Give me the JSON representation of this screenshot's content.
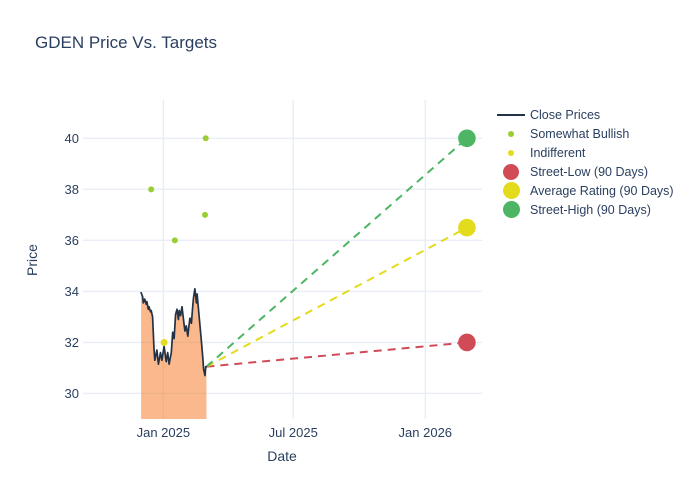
{
  "chart_data": {
    "type": "line",
    "title": "GDEN Price Vs. Targets",
    "xlabel": "Date",
    "ylabel": "Price",
    "grid": true,
    "legend_position": "right",
    "x_range": [
      "2024-09-11",
      "2026-03-21"
    ],
    "y_range": [
      29.0,
      41.5
    ],
    "x_ticks": [
      {
        "date": "2025-01-01",
        "label": "Jan 2025"
      },
      {
        "date": "2025-07-01",
        "label": "Jul 2025"
      },
      {
        "date": "2026-01-01",
        "label": "Jan 2026"
      }
    ],
    "y_ticks": [
      30,
      32,
      34,
      36,
      38,
      40
    ],
    "close_prices": {
      "name": "Close Prices",
      "line_color": "#223247",
      "fill_color": "rgba(246,126,46,0.55)",
      "dates": [
        "2024-12-01",
        "2024-12-03",
        "2024-12-04",
        "2024-12-06",
        "2024-12-08",
        "2024-12-09",
        "2024-12-11",
        "2024-12-12",
        "2024-12-14",
        "2024-12-15",
        "2024-12-17",
        "2024-12-19",
        "2024-12-20",
        "2024-12-23",
        "2024-12-25",
        "2024-12-28",
        "2024-12-30",
        "2025-01-02",
        "2025-01-05",
        "2025-01-07",
        "2025-01-09",
        "2025-01-12",
        "2025-01-14",
        "2025-01-16",
        "2025-01-18",
        "2025-01-20",
        "2025-01-22",
        "2025-01-23",
        "2025-01-25",
        "2025-01-27",
        "2025-01-29",
        "2025-01-31",
        "2025-02-02",
        "2025-02-04",
        "2025-02-05",
        "2025-02-07",
        "2025-02-09",
        "2025-02-11",
        "2025-02-12",
        "2025-02-14",
        "2025-02-16",
        "2025-02-17",
        "2025-02-19",
        "2025-02-21",
        "2025-02-23",
        "2025-02-25",
        "2025-02-26",
        "2025-02-28",
        "2025-03-01",
        "2025-03-02"
      ],
      "values": [
        33.95,
        33.8,
        33.55,
        33.7,
        33.5,
        33.6,
        33.3,
        33.4,
        33.2,
        33.25,
        33.0,
        31.75,
        31.3,
        31.7,
        31.15,
        31.6,
        31.3,
        31.85,
        31.25,
        31.6,
        31.15,
        31.6,
        32.4,
        32.15,
        33.1,
        33.3,
        32.9,
        33.25,
        33.05,
        33.4,
        32.9,
        32.45,
        32.65,
        32.25,
        32.5,
        32.95,
        32.75,
        33.45,
        33.75,
        34.1,
        33.55,
        33.9,
        33.3,
        32.65,
        32.05,
        31.4,
        30.95,
        30.7,
        31.05,
        31.05
      ]
    },
    "ratings": [
      {
        "name": "Somewhat Bullish",
        "color": "#9acd32",
        "marker_size": 6,
        "points": [
          {
            "date": "2024-12-15",
            "value": 38.0
          },
          {
            "date": "2025-01-17",
            "value": 36.0
          },
          {
            "date": "2025-02-28",
            "value": 37.0
          },
          {
            "date": "2025-03-01",
            "value": 40.0
          }
        ]
      },
      {
        "name": "Indifferent",
        "color": "#e3dc1c",
        "marker_size": 7,
        "points": [
          {
            "date": "2025-01-02",
            "value": 32.0
          }
        ]
      }
    ],
    "targets": [
      {
        "name": "Street-Low (90 Days)",
        "color": "#d14b57",
        "date": "2026-02-28",
        "value": 32.0
      },
      {
        "name": "Average Rating (90 Days)",
        "color": "#e3dc1c",
        "date": "2026-02-28",
        "value": 36.5
      },
      {
        "name": "Street-High (90 Days)",
        "color": "#4db563",
        "date": "2026-02-28",
        "value": 40.0
      }
    ],
    "style": {
      "grid_color": "#e9edf5",
      "text_color": "#2a3f5f",
      "background": "#ffffff"
    },
    "legend": [
      {
        "label": "Close Prices",
        "kind": "line",
        "color": "#223247",
        "size": 28
      },
      {
        "label": "Somewhat Bullish",
        "kind": "dot",
        "color": "#9acd32",
        "size": 6
      },
      {
        "label": "Indifferent",
        "kind": "dot",
        "color": "#e3dc1c",
        "size": 6
      },
      {
        "label": "Street-Low (90 Days)",
        "kind": "dot",
        "color": "#d14b57",
        "size": 16
      },
      {
        "label": "Average Rating (90 Days)",
        "kind": "dot",
        "color": "#e3dc1c",
        "size": 17
      },
      {
        "label": "Street-High (90 Days)",
        "kind": "dot",
        "color": "#4db563",
        "size": 17
      }
    ]
  }
}
